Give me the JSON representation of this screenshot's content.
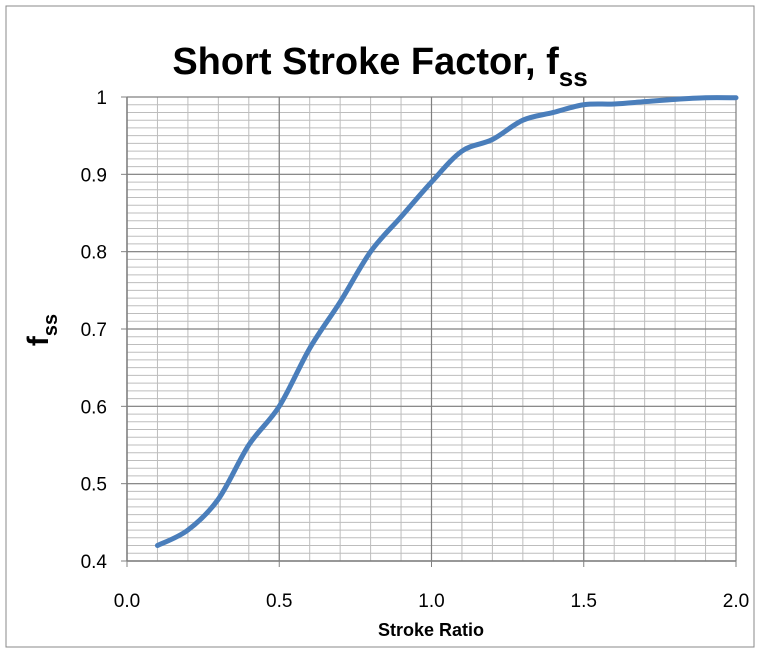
{
  "chart_data": {
    "type": "line",
    "title": "Short Stroke Factor, f",
    "title_subscript": "ss",
    "xlabel": "Stroke Ratio",
    "ylabel": "f",
    "ylabel_subscript": "ss",
    "x": [
      0.1,
      0.2,
      0.3,
      0.4,
      0.5,
      0.6,
      0.7,
      0.8,
      0.9,
      1.0,
      1.1,
      1.2,
      1.3,
      1.4,
      1.5,
      1.6,
      1.7,
      1.8,
      1.9,
      2.0
    ],
    "series": [
      {
        "color": "#4a7ebb",
        "values": [
          0.42,
          0.44,
          0.48,
          0.55,
          0.6,
          0.675,
          0.735,
          0.8,
          0.845,
          0.89,
          0.93,
          0.945,
          0.97,
          0.98,
          0.99,
          0.991,
          0.994,
          0.997,
          0.999,
          0.999
        ]
      }
    ],
    "xlim": [
      0,
      2.0
    ],
    "xticks": [
      {
        "value": 0,
        "label": "0.0"
      },
      0.5,
      {
        "value": 1.0,
        "label": "1.0"
      },
      1.5,
      {
        "value": 2.0,
        "label": "2.0"
      }
    ],
    "ylim": [
      0.4,
      1
    ],
    "yticks": [
      0.4,
      0.5,
      0.6,
      0.7,
      0.8,
      0.9,
      1
    ],
    "grid": true,
    "minor_grid": {
      "x": 0.1,
      "y": 0.01
    }
  }
}
